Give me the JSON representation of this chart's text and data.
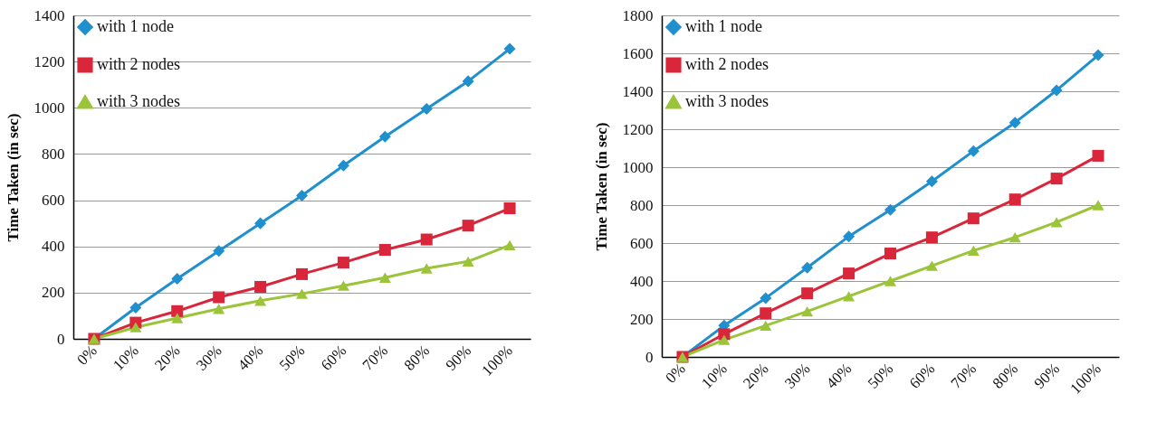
{
  "chart_data": [
    {
      "type": "line",
      "ylabel": "Time Taken (in sec)",
      "categories": [
        "0%",
        "10%",
        "20%",
        "30%",
        "40%",
        "50%",
        "60%",
        "70%",
        "80%",
        "90%",
        "100%"
      ],
      "ylim": [
        0,
        1400
      ],
      "yticks": [
        0,
        200,
        400,
        600,
        800,
        1000,
        1200,
        1400
      ],
      "grid": "y",
      "legend": "top left",
      "series": [
        {
          "name": "with 1 node",
          "color": "#1f8fce",
          "marker": "diamond",
          "values": [
            0,
            135,
            260,
            380,
            500,
            620,
            750,
            875,
            995,
            1115,
            1255
          ]
        },
        {
          "name": "with 2 nodes",
          "color": "#d9263a",
          "marker": "square",
          "values": [
            0,
            70,
            120,
            180,
            225,
            280,
            330,
            385,
            430,
            490,
            565
          ]
        },
        {
          "name": "with 3 nodes",
          "color": "#9bc43a",
          "marker": "triangle",
          "values": [
            0,
            50,
            90,
            130,
            165,
            195,
            230,
            265,
            305,
            335,
            405
          ]
        }
      ]
    },
    {
      "type": "line",
      "ylabel": "Time Taken (in sec)",
      "categories": [
        "0%",
        "10%",
        "20%",
        "30%",
        "40%",
        "50%",
        "60%",
        "70%",
        "80%",
        "90%",
        "100%"
      ],
      "ylim": [
        0,
        1800
      ],
      "yticks": [
        0,
        200,
        400,
        600,
        800,
        1000,
        1200,
        1400,
        1600,
        1800
      ],
      "grid": "y",
      "legend": "top left",
      "series": [
        {
          "name": "with 1 node",
          "color": "#1f8fce",
          "marker": "diamond",
          "values": [
            0,
            165,
            310,
            470,
            635,
            775,
            925,
            1085,
            1235,
            1405,
            1590
          ]
        },
        {
          "name": "with 2 nodes",
          "color": "#d9263a",
          "marker": "square",
          "values": [
            0,
            120,
            230,
            335,
            440,
            545,
            630,
            730,
            830,
            940,
            1060
          ]
        },
        {
          "name": "with 3 nodes",
          "color": "#9bc43a",
          "marker": "triangle",
          "values": [
            0,
            90,
            165,
            240,
            320,
            400,
            480,
            560,
            630,
            710,
            800
          ]
        }
      ]
    }
  ]
}
